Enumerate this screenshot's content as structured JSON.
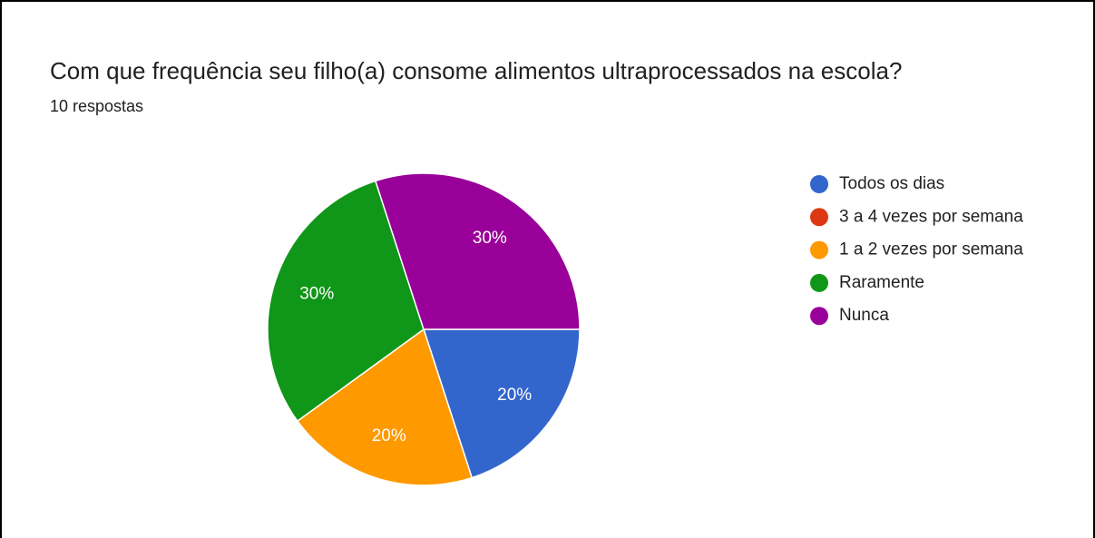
{
  "chart_data": {
    "type": "pie",
    "title": "Com que frequência seu filho(a) consome alimentos ultraprocessados na escola?",
    "subtitle": "10 respostas",
    "categories": [
      "Todos os dias",
      "3 a 4 vezes por semana",
      "1 a 2 vezes por semana",
      "Raramente",
      "Nunca"
    ],
    "values": [
      20,
      0,
      20,
      30,
      30
    ],
    "value_labels": [
      "20%",
      null,
      "20%",
      "30%",
      "30%"
    ],
    "colors": [
      "#3366cc",
      "#dc3912",
      "#ff9900",
      "#109618",
      "#990099"
    ],
    "legend": "right"
  }
}
